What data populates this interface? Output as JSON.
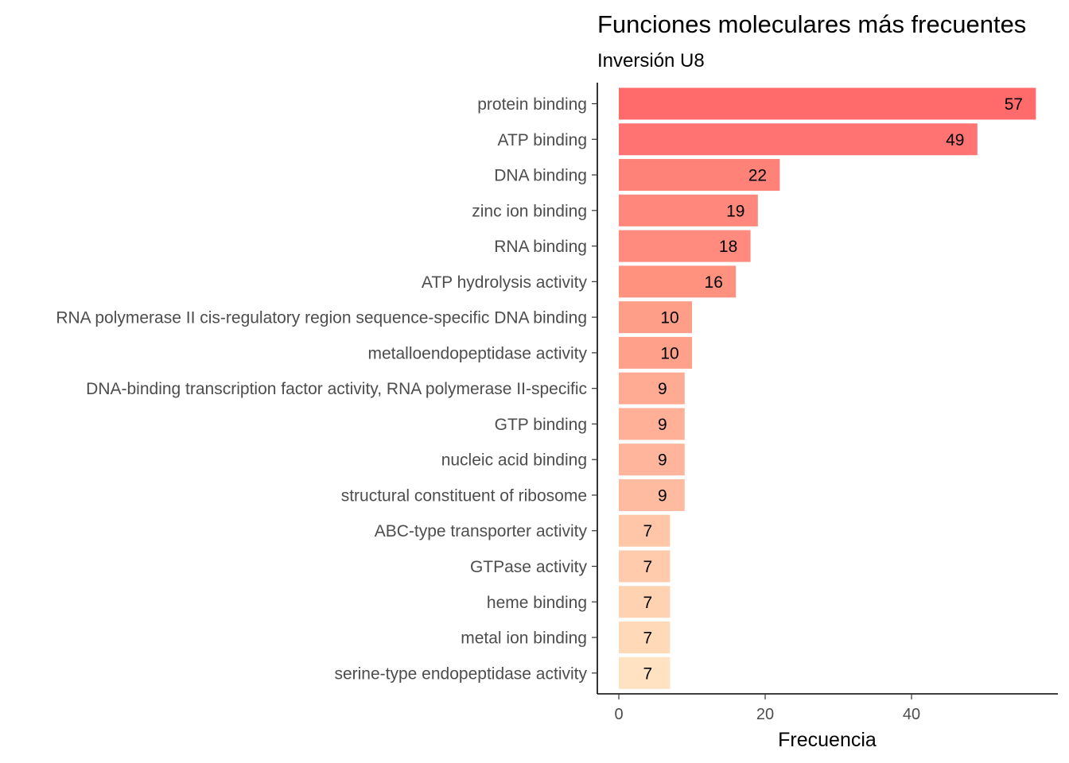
{
  "chart_data": {
    "type": "bar",
    "orientation": "horizontal",
    "title": "Funciones moleculares más frecuentes",
    "subtitle": "Inversión U8",
    "xlabel": "Frecuencia",
    "ylabel": "",
    "xlim": [
      0,
      60
    ],
    "x_ticks": [
      0,
      20,
      40
    ],
    "grid": false,
    "legend": "none",
    "categories": [
      "protein binding",
      "ATP binding",
      "DNA binding",
      "zinc ion binding",
      "RNA binding",
      "ATP hydrolysis activity",
      "RNA polymerase II cis-regulatory region sequence-specific DNA binding",
      "metalloendopeptidase activity",
      "DNA-binding transcription factor activity, RNA polymerase II-specific",
      "GTP binding",
      "nucleic acid binding",
      "structural constituent of ribosome",
      "ABC-type transporter activity",
      "GTPase activity",
      "heme binding",
      "metal ion binding",
      "serine-type endopeptidase activity"
    ],
    "values": [
      57,
      49,
      22,
      19,
      18,
      16,
      10,
      10,
      9,
      9,
      9,
      9,
      7,
      7,
      7,
      7,
      7
    ],
    "colors": [
      "#ff6b6b",
      "#ff7472",
      "#ff8278",
      "#ff877b",
      "#ff8a7d",
      "#ff917f",
      "#ff9e88",
      "#ffa08a",
      "#ffaa93",
      "#ffb097",
      "#ffb59b",
      "#ffbb9f",
      "#ffc6a8",
      "#ffcbac",
      "#ffd2b2",
      "#ffd9b8",
      "#ffe2c2"
    ]
  }
}
